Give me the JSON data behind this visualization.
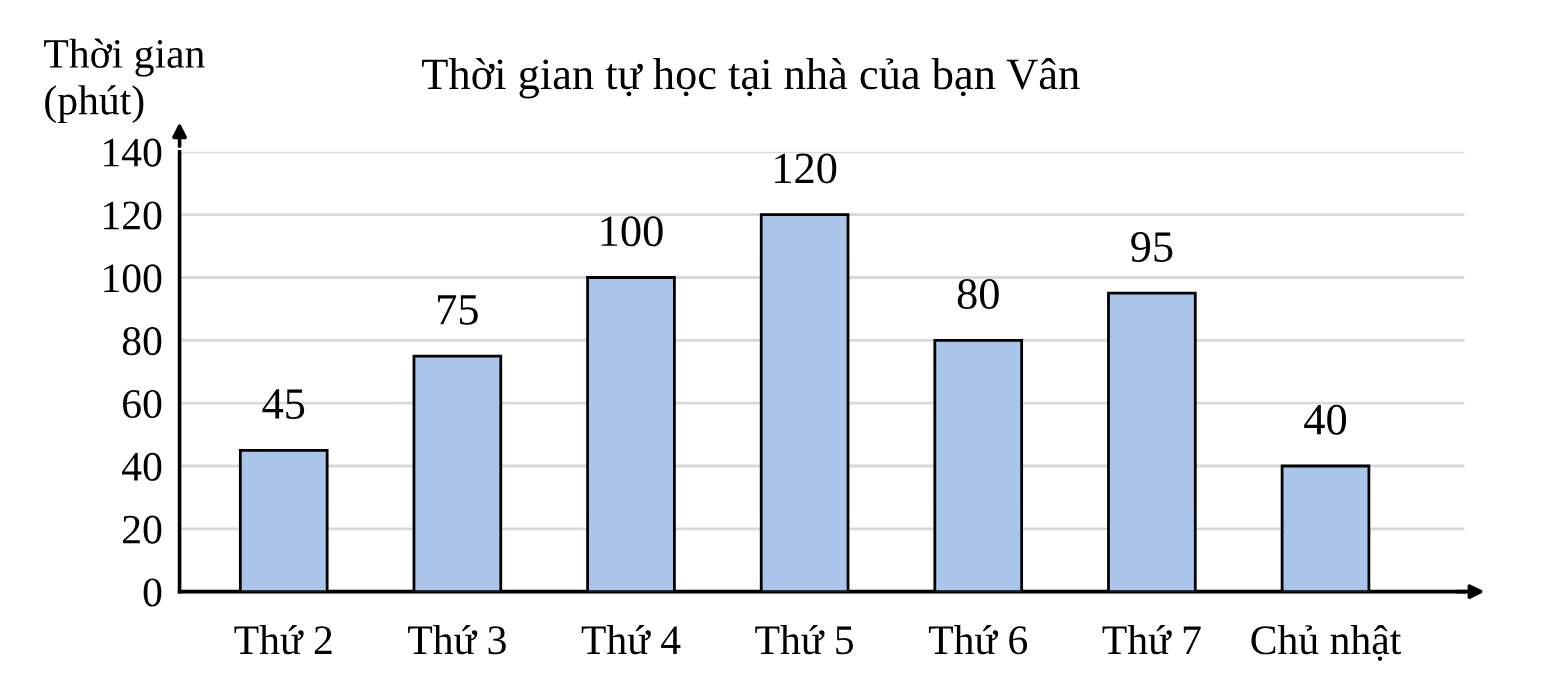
{
  "chart_data": {
    "type": "bar",
    "title": "Thời gian tự học tại nhà của bạn Vân",
    "ylabel": "Thời gian\n(phút)",
    "categories": [
      "Thứ 2",
      "Thứ 3",
      "Thứ 4",
      "Thứ 5",
      "Thứ 6",
      "Thứ 7",
      "Chủ nhật"
    ],
    "values": [
      45,
      75,
      100,
      120,
      80,
      95,
      40
    ],
    "color": "#a9c6ea",
    "ylim": [
      0,
      140
    ],
    "yticks": [
      0,
      20,
      40,
      60,
      80,
      100,
      120,
      140
    ],
    "grid": "y",
    "data_labels": true
  }
}
